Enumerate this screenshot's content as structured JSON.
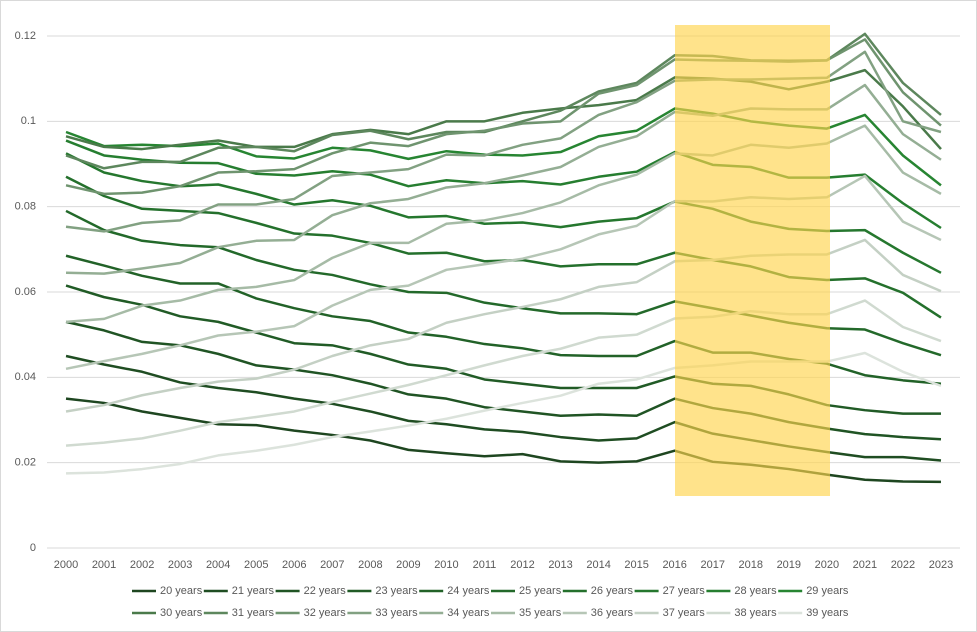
{
  "chart_data": {
    "type": "line",
    "categories": [
      "2000",
      "2001",
      "2002",
      "2003",
      "2004",
      "2005",
      "2006",
      "2007",
      "2008",
      "2009",
      "2010",
      "2011",
      "2012",
      "2013",
      "2014",
      "2015",
      "2016",
      "2017",
      "2018",
      "2019",
      "2020",
      "2021",
      "2022",
      "2023"
    ],
    "ylim": [
      0,
      0.12
    ],
    "yticks": [
      0,
      0.02,
      0.04,
      0.06,
      0.08,
      0.1,
      0.12
    ],
    "grid": true,
    "legend": "bottom",
    "series": [
      {
        "name": "20 years",
        "color": "#1e4620",
        "values": [
          0.035,
          0.034,
          0.032,
          0.0305,
          0.029,
          0.0288,
          0.0275,
          0.0265,
          0.0252,
          0.023,
          0.0222,
          0.0215,
          0.022,
          0.0203,
          0.02,
          0.0203,
          0.0228,
          0.0202,
          0.0195,
          0.0185,
          0.0172,
          0.016,
          0.0156,
          0.0155
        ]
      },
      {
        "name": "21 years",
        "color": "#1f4d22",
        "values": [
          0.045,
          0.043,
          0.0413,
          0.0388,
          0.0375,
          0.0365,
          0.035,
          0.0338,
          0.032,
          0.0298,
          0.029,
          0.0278,
          0.0272,
          0.026,
          0.0252,
          0.0257,
          0.0295,
          0.0268,
          0.0253,
          0.0238,
          0.0225,
          0.0213,
          0.0213,
          0.0205
        ]
      },
      {
        "name": "22 years",
        "color": "#205424",
        "values": [
          0.053,
          0.051,
          0.0483,
          0.0475,
          0.0455,
          0.0428,
          0.0418,
          0.0405,
          0.0385,
          0.036,
          0.035,
          0.033,
          0.032,
          0.031,
          0.0313,
          0.031,
          0.035,
          0.0328,
          0.0315,
          0.0295,
          0.028,
          0.0267,
          0.026,
          0.0255
        ]
      },
      {
        "name": "23 years",
        "color": "#215b26",
        "values": [
          0.0615,
          0.0588,
          0.057,
          0.0543,
          0.053,
          0.0505,
          0.048,
          0.0475,
          0.0455,
          0.043,
          0.042,
          0.0395,
          0.0385,
          0.0375,
          0.0375,
          0.0375,
          0.0402,
          0.0385,
          0.038,
          0.036,
          0.0335,
          0.0323,
          0.0315,
          0.0315
        ]
      },
      {
        "name": "24 years",
        "color": "#226228",
        "values": [
          0.0685,
          0.0662,
          0.0638,
          0.062,
          0.062,
          0.0585,
          0.0562,
          0.0543,
          0.0532,
          0.0505,
          0.0495,
          0.0478,
          0.0468,
          0.0452,
          0.045,
          0.045,
          0.0485,
          0.0458,
          0.0458,
          0.0443,
          0.0432,
          0.0405,
          0.0393,
          0.0385
        ]
      },
      {
        "name": "25 years",
        "color": "#23692a",
        "values": [
          0.079,
          0.0745,
          0.072,
          0.071,
          0.0705,
          0.0675,
          0.0652,
          0.064,
          0.0618,
          0.06,
          0.0598,
          0.0575,
          0.0562,
          0.055,
          0.055,
          0.0548,
          0.0578,
          0.0562,
          0.0545,
          0.0528,
          0.0515,
          0.0512,
          0.048,
          0.0452
        ]
      },
      {
        "name": "26 years",
        "color": "#24702c",
        "values": [
          0.087,
          0.0825,
          0.0795,
          0.079,
          0.0785,
          0.0762,
          0.0737,
          0.0732,
          0.0715,
          0.069,
          0.0692,
          0.0672,
          0.0675,
          0.066,
          0.0665,
          0.0665,
          0.0692,
          0.0675,
          0.066,
          0.0635,
          0.0628,
          0.0632,
          0.0598,
          0.054
        ]
      },
      {
        "name": "27 years",
        "color": "#25772e",
        "values": [
          0.0925,
          0.088,
          0.086,
          0.0848,
          0.0852,
          0.083,
          0.0805,
          0.0815,
          0.0802,
          0.0775,
          0.0778,
          0.076,
          0.0763,
          0.0752,
          0.0765,
          0.0773,
          0.0812,
          0.0795,
          0.0765,
          0.0748,
          0.0743,
          0.0745,
          0.0692,
          0.0645
        ]
      },
      {
        "name": "28 years",
        "color": "#267e30",
        "values": [
          0.0955,
          0.092,
          0.091,
          0.0903,
          0.0902,
          0.0877,
          0.0873,
          0.0883,
          0.0875,
          0.0848,
          0.0862,
          0.0855,
          0.086,
          0.0852,
          0.087,
          0.0882,
          0.0928,
          0.0898,
          0.0893,
          0.0868,
          0.0868,
          0.0875,
          0.0808,
          0.075
        ]
      },
      {
        "name": "29 years",
        "color": "#278532",
        "values": [
          0.0975,
          0.0942,
          0.0945,
          0.0942,
          0.0948,
          0.0918,
          0.0913,
          0.0938,
          0.0932,
          0.0912,
          0.093,
          0.0922,
          0.092,
          0.0928,
          0.0965,
          0.0978,
          0.103,
          0.1018,
          0.1,
          0.099,
          0.0983,
          0.1015,
          0.092,
          0.085
        ]
      },
      {
        "name": "30 years",
        "color": "#4a7a4a",
        "values": [
          0.0965,
          0.094,
          0.0935,
          0.0945,
          0.0955,
          0.094,
          0.094,
          0.097,
          0.098,
          0.097,
          0.1,
          0.1,
          0.102,
          0.103,
          0.1038,
          0.105,
          0.1103,
          0.11,
          0.1093,
          0.1075,
          0.1093,
          0.112,
          0.1035,
          0.0935
        ]
      },
      {
        "name": "31 years",
        "color": "#5d875d",
        "values": [
          0.092,
          0.089,
          0.0905,
          0.0905,
          0.0938,
          0.094,
          0.093,
          0.0968,
          0.0978,
          0.0958,
          0.0975,
          0.0975,
          0.1,
          0.1025,
          0.107,
          0.109,
          0.1155,
          0.1153,
          0.1143,
          0.1142,
          0.1143,
          0.1205,
          0.109,
          0.1015
        ]
      },
      {
        "name": "32 years",
        "color": "#6f946f",
        "values": [
          0.085,
          0.083,
          0.0833,
          0.0848,
          0.088,
          0.0883,
          0.0888,
          0.0925,
          0.095,
          0.0942,
          0.097,
          0.0978,
          0.0995,
          0.1,
          0.1065,
          0.1085,
          0.1145,
          0.1143,
          0.1142,
          0.114,
          0.1143,
          0.1192,
          0.1068,
          0.099
        ]
      },
      {
        "name": "33 years",
        "color": "#82a182",
        "values": [
          0.0753,
          0.0742,
          0.0762,
          0.0768,
          0.0805,
          0.0805,
          0.0818,
          0.0872,
          0.088,
          0.0888,
          0.0922,
          0.092,
          0.0945,
          0.096,
          0.1015,
          0.1045,
          0.1095,
          0.1098,
          0.1098,
          0.11,
          0.1102,
          0.1163,
          0.1,
          0.0975
        ]
      },
      {
        "name": "34 years",
        "color": "#94ae94",
        "values": [
          0.0645,
          0.0643,
          0.0655,
          0.0668,
          0.0705,
          0.072,
          0.0722,
          0.078,
          0.0808,
          0.0818,
          0.0845,
          0.0855,
          0.0873,
          0.0893,
          0.094,
          0.0965,
          0.1022,
          0.1013,
          0.103,
          0.1028,
          0.1028,
          0.1085,
          0.097,
          0.091
        ]
      },
      {
        "name": "35 years",
        "color": "#a6bba6",
        "values": [
          0.053,
          0.0537,
          0.0568,
          0.058,
          0.0605,
          0.0612,
          0.0628,
          0.068,
          0.0715,
          0.0715,
          0.076,
          0.0768,
          0.0785,
          0.081,
          0.085,
          0.0875,
          0.0925,
          0.092,
          0.0945,
          0.0938,
          0.0948,
          0.099,
          0.088,
          0.083
        ]
      },
      {
        "name": "36 years",
        "color": "#b6c6b6",
        "values": [
          0.042,
          0.0438,
          0.0455,
          0.0475,
          0.0498,
          0.0507,
          0.052,
          0.0568,
          0.0605,
          0.0615,
          0.0652,
          0.0665,
          0.0678,
          0.07,
          0.0735,
          0.0755,
          0.0813,
          0.0812,
          0.0822,
          0.0818,
          0.0822,
          0.0872,
          0.0765,
          0.0722
        ]
      },
      {
        "name": "37 years",
        "color": "#c4d0c4",
        "values": [
          0.032,
          0.0335,
          0.0358,
          0.0375,
          0.039,
          0.0397,
          0.0418,
          0.045,
          0.0475,
          0.049,
          0.0528,
          0.0548,
          0.0565,
          0.0583,
          0.0612,
          0.0623,
          0.0672,
          0.0675,
          0.0685,
          0.0688,
          0.0688,
          0.0722,
          0.064,
          0.0602
        ]
      },
      {
        "name": "38 years",
        "color": "#d0dad0",
        "values": [
          0.024,
          0.0247,
          0.0257,
          0.0275,
          0.0295,
          0.0307,
          0.032,
          0.0342,
          0.0362,
          0.0382,
          0.0405,
          0.0428,
          0.045,
          0.0467,
          0.0493,
          0.05,
          0.0538,
          0.0542,
          0.0555,
          0.0548,
          0.0548,
          0.058,
          0.0518,
          0.0485
        ]
      },
      {
        "name": "39 years",
        "color": "#dce3dc",
        "values": [
          0.0175,
          0.0177,
          0.0185,
          0.0197,
          0.0217,
          0.0228,
          0.0242,
          0.026,
          0.0273,
          0.0287,
          0.0303,
          0.0322,
          0.034,
          0.0357,
          0.0385,
          0.0395,
          0.0422,
          0.0428,
          0.0437,
          0.0437,
          0.0437,
          0.0457,
          0.0413,
          0.038
        ]
      }
    ]
  }
}
